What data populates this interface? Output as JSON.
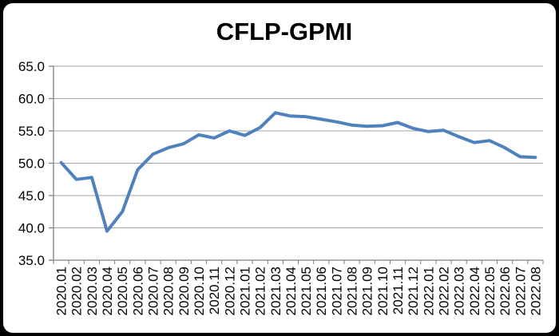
{
  "chart_data": {
    "type": "line",
    "title": "CFLP-GPMI",
    "xlabel": "",
    "ylabel": "",
    "ylim": [
      35,
      65
    ],
    "ytick_interval": 5,
    "ytick_labels_top_to_bottom": [
      "65.0",
      "60.0",
      "55.0",
      "50.0",
      "45.0",
      "40.0",
      "35.0"
    ],
    "grid": true,
    "legend_position": "none",
    "categories": [
      "2020.01",
      "2020.02",
      "2020.03",
      "2020.04",
      "2020.05",
      "2020.06",
      "2020.07",
      "2020.08",
      "2020.09",
      "2020.10",
      "2020.11",
      "2020.12",
      "2021.01",
      "2021.02",
      "2021.03",
      "2021.04",
      "2021.05",
      "2021.06",
      "2021.07",
      "2021.08",
      "2021.09",
      "2021.10",
      "2021.11",
      "2021.12",
      "2022.01",
      "2022.02",
      "2022.03",
      "2022.04",
      "2022.05",
      "2022.06",
      "2022.07",
      "2022.08"
    ],
    "series": [
      {
        "name": "CFLP-GPMI",
        "color": "#4F81BD",
        "values": [
          50.1,
          47.5,
          47.8,
          39.5,
          42.5,
          49.0,
          51.4,
          52.4,
          53.0,
          54.4,
          53.9,
          55.0,
          54.3,
          55.5,
          57.8,
          57.3,
          57.2,
          56.8,
          56.4,
          55.9,
          55.7,
          55.8,
          56.3,
          55.4,
          54.9,
          55.1,
          54.1,
          53.2,
          53.5,
          52.4,
          51.0,
          50.9
        ]
      }
    ],
    "colors": {
      "gridline": "#A3A3A3",
      "axis": "#7F7F7F",
      "tick": "#7F7F7F",
      "label_text": "#000000",
      "plot_background": "#FFFFFF",
      "frame_background": "#000000"
    }
  }
}
